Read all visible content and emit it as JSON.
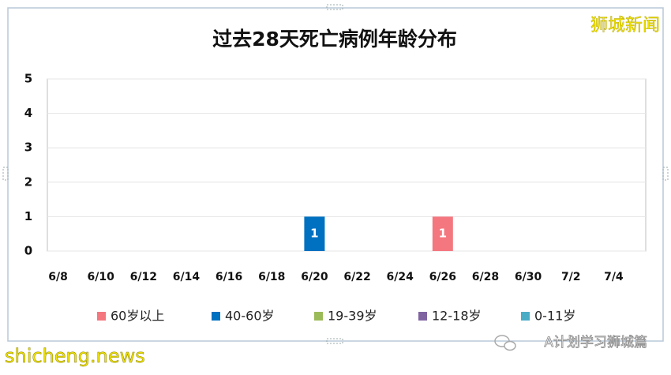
{
  "chart_data": {
    "type": "bar",
    "stacked": true,
    "title": "过去28天死亡病例年龄分布",
    "categories": [
      "6/8",
      null,
      "6/10",
      null,
      "6/12",
      null,
      "6/14",
      null,
      "6/16",
      null,
      "6/18",
      null,
      "6/20",
      null,
      "6/22",
      null,
      "6/24",
      null,
      "6/26",
      null,
      "6/28",
      null,
      "6/30",
      null,
      "7/2",
      null,
      "7/4",
      null
    ],
    "series": [
      {
        "name": "60岁以上",
        "color": "#f4777f",
        "values": [
          null,
          null,
          null,
          null,
          null,
          null,
          null,
          null,
          null,
          null,
          null,
          null,
          null,
          null,
          null,
          null,
          null,
          null,
          1,
          null,
          null,
          null,
          null,
          null,
          null,
          null,
          null,
          null
        ]
      },
      {
        "name": "40-60岁",
        "color": "#0070c0",
        "values": [
          null,
          null,
          null,
          null,
          null,
          null,
          null,
          null,
          null,
          null,
          null,
          null,
          1,
          null,
          null,
          null,
          null,
          null,
          null,
          null,
          null,
          null,
          null,
          null,
          null,
          null,
          null,
          null
        ]
      },
      {
        "name": "19-39岁",
        "color": "#9bbb59",
        "values": [
          null,
          null,
          null,
          null,
          null,
          null,
          null,
          null,
          null,
          null,
          null,
          null,
          null,
          null,
          null,
          null,
          null,
          null,
          null,
          null,
          null,
          null,
          null,
          null,
          null,
          null,
          null,
          null
        ]
      },
      {
        "name": "12-18岁",
        "color": "#8064a2",
        "values": [
          null,
          null,
          null,
          null,
          null,
          null,
          null,
          null,
          null,
          null,
          null,
          null,
          null,
          null,
          null,
          null,
          null,
          null,
          null,
          null,
          null,
          null,
          null,
          null,
          null,
          null,
          null,
          null
        ]
      },
      {
        "name": "0-11岁",
        "color": "#4bacc6",
        "values": [
          null,
          null,
          null,
          null,
          null,
          null,
          null,
          null,
          null,
          null,
          null,
          null,
          null,
          null,
          null,
          null,
          null,
          null,
          null,
          null,
          null,
          null,
          null,
          null,
          null,
          null,
          null,
          null
        ]
      }
    ],
    "ylim": [
      0,
      5
    ],
    "yticks": [
      0,
      1,
      2,
      3,
      4,
      5
    ],
    "grid": true,
    "legend": "bottom"
  },
  "watermarks": {
    "top_right": "狮城新闻",
    "bottom_left": "shicheng.news",
    "bottom_right": "A计划学习狮城篇"
  }
}
